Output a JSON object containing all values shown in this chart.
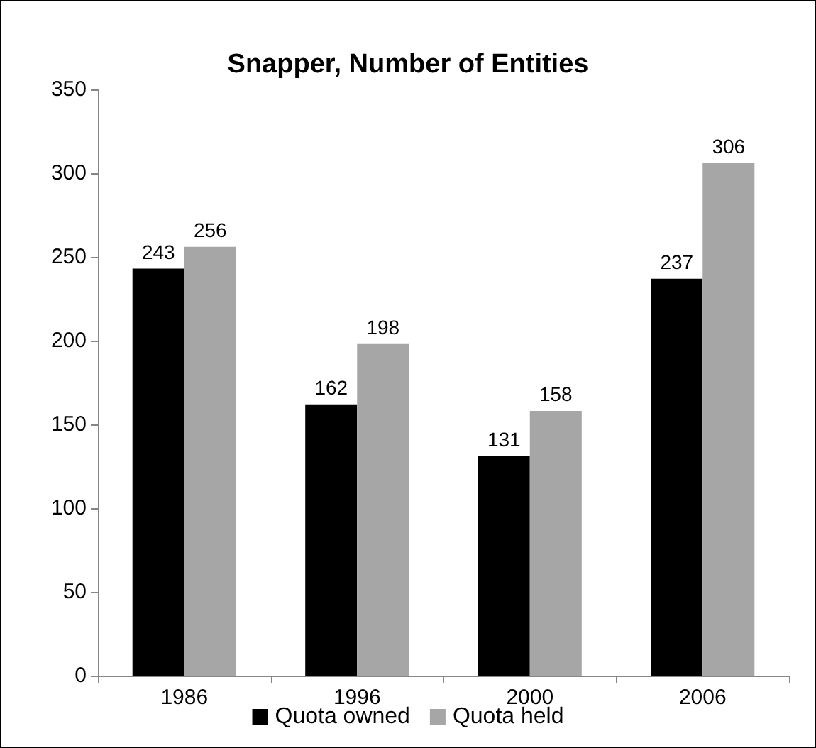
{
  "chart_data": {
    "type": "bar",
    "title": "Snapper, Number of Entities",
    "categories": [
      "1986",
      "1996",
      "2000",
      "2006"
    ],
    "series": [
      {
        "name": "Quota owned",
        "color": "#000000",
        "values": [
          243,
          162,
          131,
          237
        ]
      },
      {
        "name": "Quota held",
        "color": "#a6a6a6",
        "values": [
          256,
          198,
          158,
          306
        ]
      }
    ],
    "ylim": [
      0,
      350
    ],
    "yticks": [
      0,
      50,
      100,
      150,
      200,
      250,
      300,
      350
    ],
    "grid": false,
    "legend": "bottom",
    "data_labels": true
  }
}
